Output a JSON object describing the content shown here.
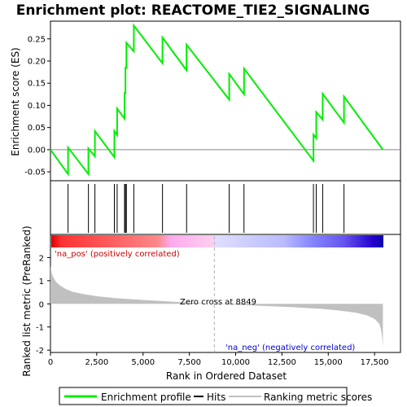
{
  "title": "Enrichment plot: REACTOME_TIE2_SIGNALING",
  "colors": {
    "es_line": "#00ee00",
    "hit_line": "#000000",
    "metric_fill": "#c0c0c0",
    "zero_cross": "#b0b0b0",
    "pos_label": "#cc0000",
    "neg_label": "#0000cc",
    "frame": "#000000"
  },
  "top_panel": {
    "ylabel": "Enrichment score (ES)",
    "yticks": [
      "0.25",
      "0.20",
      "0.15",
      "0.10",
      "0.05",
      "0.00",
      "-0.05"
    ]
  },
  "bottom_panel": {
    "ylabel": "Ranked list metric (PreRanked)",
    "yticks": [
      "2",
      "1",
      "0",
      "-1",
      "-2"
    ],
    "xlabel": "Rank in Ordered Dataset",
    "xticks": [
      "0",
      "2,500",
      "5,000",
      "7,500",
      "10,000",
      "12,500",
      "15,000",
      "17,500"
    ],
    "pos_label": "'na_pos' (positively correlated)",
    "neg_label": "'na_neg' (negatively correlated)",
    "zero_cross_label": "Zero cross at 8849"
  },
  "legend": {
    "items": [
      {
        "label": "Enrichment profile",
        "color": "#00ee00"
      },
      {
        "label": "Hits",
        "color": "#000000"
      },
      {
        "label": "Ranking metric scores",
        "color": "#c0c0c0"
      }
    ]
  },
  "chart_data": {
    "type": "line",
    "title": "Enrichment plot: REACTOME_TIE2_SIGNALING",
    "xlabel": "Rank in Ordered Dataset",
    "ylabel": "Enrichment score (ES)",
    "xlim": [
      0,
      18900
    ],
    "ylim": [
      -0.07,
      0.29
    ],
    "n_genes": 17950,
    "zero_cross": 8849,
    "hits": [
      950,
      2050,
      2400,
      3450,
      3600,
      4000,
      4050,
      4100,
      4500,
      6050,
      7350,
      9650,
      10450,
      14200,
      14350,
      14700,
      15850
    ],
    "es_profile": [
      [
        0,
        0.0
      ],
      [
        950,
        -0.055
      ],
      [
        950,
        0.005
      ],
      [
        2050,
        -0.055
      ],
      [
        2050,
        0.003
      ],
      [
        2400,
        -0.015
      ],
      [
        2400,
        0.042
      ],
      [
        3450,
        -0.017
      ],
      [
        3450,
        0.042
      ],
      [
        3600,
        0.033
      ],
      [
        3600,
        0.093
      ],
      [
        4000,
        0.07
      ],
      [
        4000,
        0.128
      ],
      [
        4050,
        0.128
      ],
      [
        4050,
        0.187
      ],
      [
        4100,
        0.183
      ],
      [
        4100,
        0.241
      ],
      [
        4500,
        0.222
      ],
      [
        4500,
        0.28
      ],
      [
        6050,
        0.195
      ],
      [
        6050,
        0.253
      ],
      [
        7350,
        0.179
      ],
      [
        7350,
        0.237
      ],
      [
        9650,
        0.113
      ],
      [
        9650,
        0.171
      ],
      [
        10450,
        0.125
      ],
      [
        10450,
        0.183
      ],
      [
        14200,
        -0.025
      ],
      [
        14200,
        0.034
      ],
      [
        14350,
        0.026
      ],
      [
        14350,
        0.085
      ],
      [
        14700,
        0.068
      ],
      [
        14700,
        0.126
      ],
      [
        15850,
        0.061
      ],
      [
        15850,
        0.12
      ],
      [
        17950,
        0.0
      ]
    ],
    "metric_ylim": [
      -2.1,
      3.0
    ],
    "metric_curve": [
      [
        0,
        1.65
      ],
      [
        60,
        1.35
      ],
      [
        150,
        1.15
      ],
      [
        300,
        0.95
      ],
      [
        500,
        0.8
      ],
      [
        800,
        0.65
      ],
      [
        1200,
        0.52
      ],
      [
        1800,
        0.42
      ],
      [
        2500,
        0.33
      ],
      [
        3500,
        0.25
      ],
      [
        5000,
        0.17
      ],
      [
        6500,
        0.1
      ],
      [
        7800,
        0.04
      ],
      [
        8849,
        0.0
      ],
      [
        10000,
        -0.04
      ],
      [
        11500,
        -0.09
      ],
      [
        13000,
        -0.14
      ],
      [
        14500,
        -0.21
      ],
      [
        15500,
        -0.28
      ],
      [
        16500,
        -0.38
      ],
      [
        17100,
        -0.5
      ],
      [
        17500,
        -0.65
      ],
      [
        17750,
        -0.85
      ],
      [
        17850,
        -1.1
      ],
      [
        17920,
        -1.5
      ],
      [
        17950,
        -1.9
      ]
    ]
  }
}
